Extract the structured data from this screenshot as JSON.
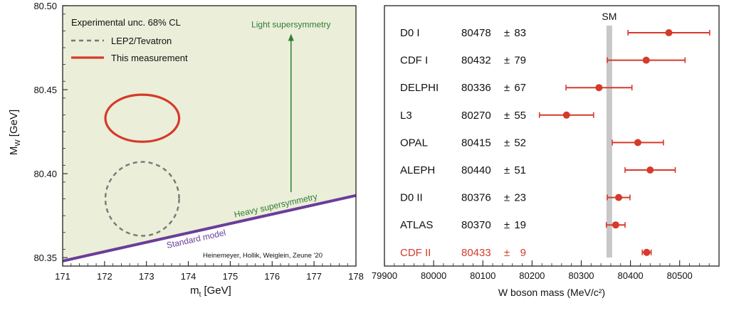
{
  "chart_data": [
    {
      "type": "contour",
      "xlabel": "m",
      "xlabel_sub": "t",
      "xlabel_unit": "[GeV]",
      "ylabel": "M",
      "ylabel_sub": "W",
      "ylabel_unit": "[GeV]",
      "xlim": [
        171,
        178
      ],
      "ylim": [
        80.345,
        80.5
      ],
      "xticks": [
        "171",
        "172",
        "173",
        "174",
        "175",
        "176",
        "177",
        "178"
      ],
      "yticks": [
        "80.35",
        "80.40",
        "80.45",
        "80.50"
      ],
      "legend_title": "Experimental unc. 68% CL",
      "legend_placement": "top-left",
      "series": [
        {
          "name": "LEP2/Tevatron",
          "style": "dashed",
          "color": "#777777",
          "center": {
            "x": 172.9,
            "y": 80.385
          },
          "half_width": 0.88,
          "half_height": 0.022
        },
        {
          "name": "This measurement",
          "style": "solid",
          "color": "#d63a2b",
          "center": {
            "x": 172.9,
            "y": 80.433
          },
          "half_width": 0.88,
          "half_height": 0.014
        }
      ],
      "standard_model_band": {
        "x": [
          171,
          178
        ],
        "y_start": [
          80.3475,
          80.3485
        ],
        "y_end": [
          80.386,
          80.388
        ],
        "color": "#6a3d9a"
      },
      "annotations": {
        "standard_model": "Standard model",
        "heavy_susy": "Heavy supersymmetry",
        "light_susy": "Light supersymmetry",
        "credit": "Heinemeyer, Hollik, Weiglein, Zeune '20"
      },
      "arrow": {
        "x": 176.45,
        "y_from": 80.389,
        "y_to": 80.482
      },
      "colors": {
        "allowed_region": "#ebeed9",
        "annotation_green": "#2e7d32",
        "band": "#6a3d9a"
      }
    },
    {
      "type": "forest",
      "xlabel": "W boson mass (MeV/c²)",
      "xlim": [
        79900,
        80580
      ],
      "xticks": [
        "79900",
        "80000",
        "80100",
        "80200",
        "80300",
        "80400",
        "80500"
      ],
      "sm_label": "SM",
      "sm_value": 80357,
      "pm": "±",
      "measurements": [
        {
          "name": "D0 I",
          "value": 80478,
          "error": 83,
          "value_text": "80478",
          "error_text": "83"
        },
        {
          "name": "CDF I",
          "value": 80432,
          "error": 79,
          "value_text": "80432",
          "error_text": "79"
        },
        {
          "name": "DELPHI",
          "value": 80336,
          "error": 67,
          "value_text": "80336",
          "error_text": "67"
        },
        {
          "name": "L3",
          "value": 80270,
          "error": 55,
          "value_text": "80270",
          "error_text": "55"
        },
        {
          "name": "OPAL",
          "value": 80415,
          "error": 52,
          "value_text": "80415",
          "error_text": "52"
        },
        {
          "name": "ALEPH",
          "value": 80440,
          "error": 51,
          "value_text": "80440",
          "error_text": "51"
        },
        {
          "name": "D0 II",
          "value": 80376,
          "error": 23,
          "value_text": "80376",
          "error_text": "23"
        },
        {
          "name": "ATLAS",
          "value": 80370,
          "error": 19,
          "value_text": "80370",
          "error_text": "19"
        },
        {
          "name": "CDF II",
          "value": 80433,
          "error": 9,
          "value_text": "80433",
          "error_text": "9",
          "highlight": true
        }
      ],
      "colors": {
        "point": "#d63a2b",
        "highlight_text": "#d63a2b",
        "text": "#111111",
        "sm_band": "#c8c8c8"
      }
    }
  ]
}
